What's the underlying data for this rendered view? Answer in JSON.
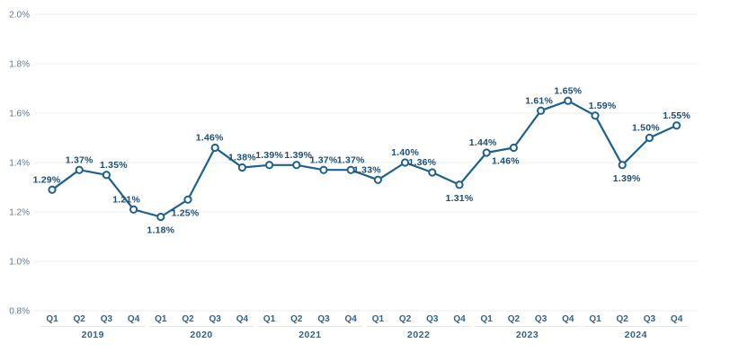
{
  "chart_data": {
    "type": "line",
    "title": "",
    "xlabel": "",
    "ylabel": "",
    "ylim": [
      0.8,
      2.0
    ],
    "grid": "horizontal",
    "legend": "none",
    "yticks": [
      {
        "value": 2.0,
        "label": "2.0%"
      },
      {
        "value": 1.8,
        "label": "1.8%"
      },
      {
        "value": 1.6,
        "label": "1.6%"
      },
      {
        "value": 1.4,
        "label": "1.4%"
      },
      {
        "value": 1.2,
        "label": "1.2%"
      },
      {
        "value": 1.0,
        "label": "1.0%"
      },
      {
        "value": 0.8,
        "label": "0.8%"
      }
    ],
    "years": [
      "2019",
      "2020",
      "2021",
      "2022",
      "2023",
      "2024"
    ],
    "quarters_per_year": [
      "Q1",
      "Q2",
      "Q3",
      "Q4"
    ],
    "points": [
      {
        "year": "2019",
        "quarter": "Q1",
        "value": 1.29,
        "label": "1.29%",
        "label_pos": "above",
        "label_dx": -6
      },
      {
        "year": "2019",
        "quarter": "Q2",
        "value": 1.37,
        "label": "1.37%",
        "label_pos": "above",
        "label_dx": 0
      },
      {
        "year": "2019",
        "quarter": "Q3",
        "value": 1.35,
        "label": "1.35%",
        "label_pos": "above",
        "label_dx": 8
      },
      {
        "year": "2019",
        "quarter": "Q4",
        "value": 1.21,
        "label": "1.21%",
        "label_pos": "above",
        "label_dx": -8
      },
      {
        "year": "2020",
        "quarter": "Q1",
        "value": 1.18,
        "label": "1.18%",
        "label_pos": "below",
        "label_dx": 0
      },
      {
        "year": "2020",
        "quarter": "Q2",
        "value": 1.25,
        "label": "1.25%",
        "label_pos": "below",
        "label_dx": -3
      },
      {
        "year": "2020",
        "quarter": "Q3",
        "value": 1.46,
        "label": "1.46%",
        "label_pos": "above",
        "label_dx": -6
      },
      {
        "year": "2020",
        "quarter": "Q4",
        "value": 1.38,
        "label": "1.38%",
        "label_pos": "above",
        "label_dx": 0
      },
      {
        "year": "2021",
        "quarter": "Q1",
        "value": 1.39,
        "label": "1.39%",
        "label_pos": "above",
        "label_dx": 0
      },
      {
        "year": "2021",
        "quarter": "Q2",
        "value": 1.39,
        "label": "1.39%",
        "label_pos": "above",
        "label_dx": 2
      },
      {
        "year": "2021",
        "quarter": "Q3",
        "value": 1.37,
        "label": "1.37%",
        "label_pos": "above",
        "label_dx": 0
      },
      {
        "year": "2021",
        "quarter": "Q4",
        "value": 1.37,
        "label": "1.37%",
        "label_pos": "above",
        "label_dx": 0
      },
      {
        "year": "2022",
        "quarter": "Q1",
        "value": 1.33,
        "label": "1.33%",
        "label_pos": "above",
        "label_dx": -12
      },
      {
        "year": "2022",
        "quarter": "Q2",
        "value": 1.4,
        "label": "1.40%",
        "label_pos": "above",
        "label_dx": 0
      },
      {
        "year": "2022",
        "quarter": "Q3",
        "value": 1.36,
        "label": "1.36%",
        "label_pos": "above",
        "label_dx": -11
      },
      {
        "year": "2022",
        "quarter": "Q4",
        "value": 1.31,
        "label": "1.31%",
        "label_pos": "below",
        "label_dx": 0
      },
      {
        "year": "2023",
        "quarter": "Q1",
        "value": 1.44,
        "label": "1.44%",
        "label_pos": "above",
        "label_dx": -4
      },
      {
        "year": "2023",
        "quarter": "Q2",
        "value": 1.46,
        "label": "1.46%",
        "label_pos": "below",
        "label_dx": -9
      },
      {
        "year": "2023",
        "quarter": "Q3",
        "value": 1.61,
        "label": "1.61%",
        "label_pos": "above",
        "label_dx": -2
      },
      {
        "year": "2023",
        "quarter": "Q4",
        "value": 1.65,
        "label": "1.65%",
        "label_pos": "above",
        "label_dx": 0
      },
      {
        "year": "2024",
        "quarter": "Q1",
        "value": 1.59,
        "label": "1.59%",
        "label_pos": "above",
        "label_dx": 8
      },
      {
        "year": "2024",
        "quarter": "Q2",
        "value": 1.39,
        "label": "1.39%",
        "label_pos": "below",
        "label_dx": 5
      },
      {
        "year": "2024",
        "quarter": "Q3",
        "value": 1.5,
        "label": "1.50%",
        "label_pos": "above",
        "label_dx": -4
      },
      {
        "year": "2024",
        "quarter": "Q4",
        "value": 1.55,
        "label": "1.55%",
        "label_pos": "above",
        "label_dx": 0
      }
    ]
  },
  "style": {
    "line_color": "#1e618d",
    "marker_fill": "#ffffff",
    "marker_stroke": "#1e618d",
    "data_label_color": "#1b4e77",
    "ytick_color": "#5d7894",
    "quarter_label_color": "#2f6390",
    "year_label_color": "#2f6390",
    "gridline_color": "#ededed",
    "separator_color": "#e3e7ed",
    "background": "#ffffff"
  }
}
